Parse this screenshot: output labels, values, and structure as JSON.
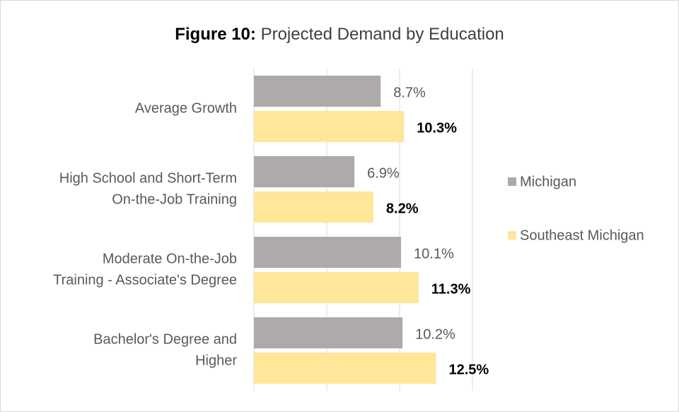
{
  "chart_data": {
    "type": "hbar",
    "figure_label": "Figure 10:",
    "title": "Projected Demand by Education",
    "categories": [
      [
        "Average Growth"
      ],
      [
        "High School and Short-Term",
        "On-the-Job Training"
      ],
      [
        "Moderate On-the-Job",
        "Training - Associate's Degree"
      ],
      [
        "Bachelor's Degree and",
        "Higher"
      ]
    ],
    "series": [
      {
        "name": "Michigan",
        "color": "#aeaaaa",
        "values": [
          8.7,
          6.9,
          10.1,
          10.2
        ],
        "value_labels": [
          "8.7%",
          "6.9%",
          "10.1%",
          "10.2%"
        ]
      },
      {
        "name": "Southeast Michigan",
        "color": "#ffe699",
        "values": [
          10.3,
          8.2,
          11.3,
          12.5
        ],
        "value_labels": [
          "10.3%",
          "8.2%",
          "11.3%",
          "12.5%"
        ]
      }
    ],
    "xlim": [
      0,
      15
    ],
    "xticks": [
      0,
      5,
      10,
      15
    ],
    "grid": true,
    "legend": "right"
  }
}
